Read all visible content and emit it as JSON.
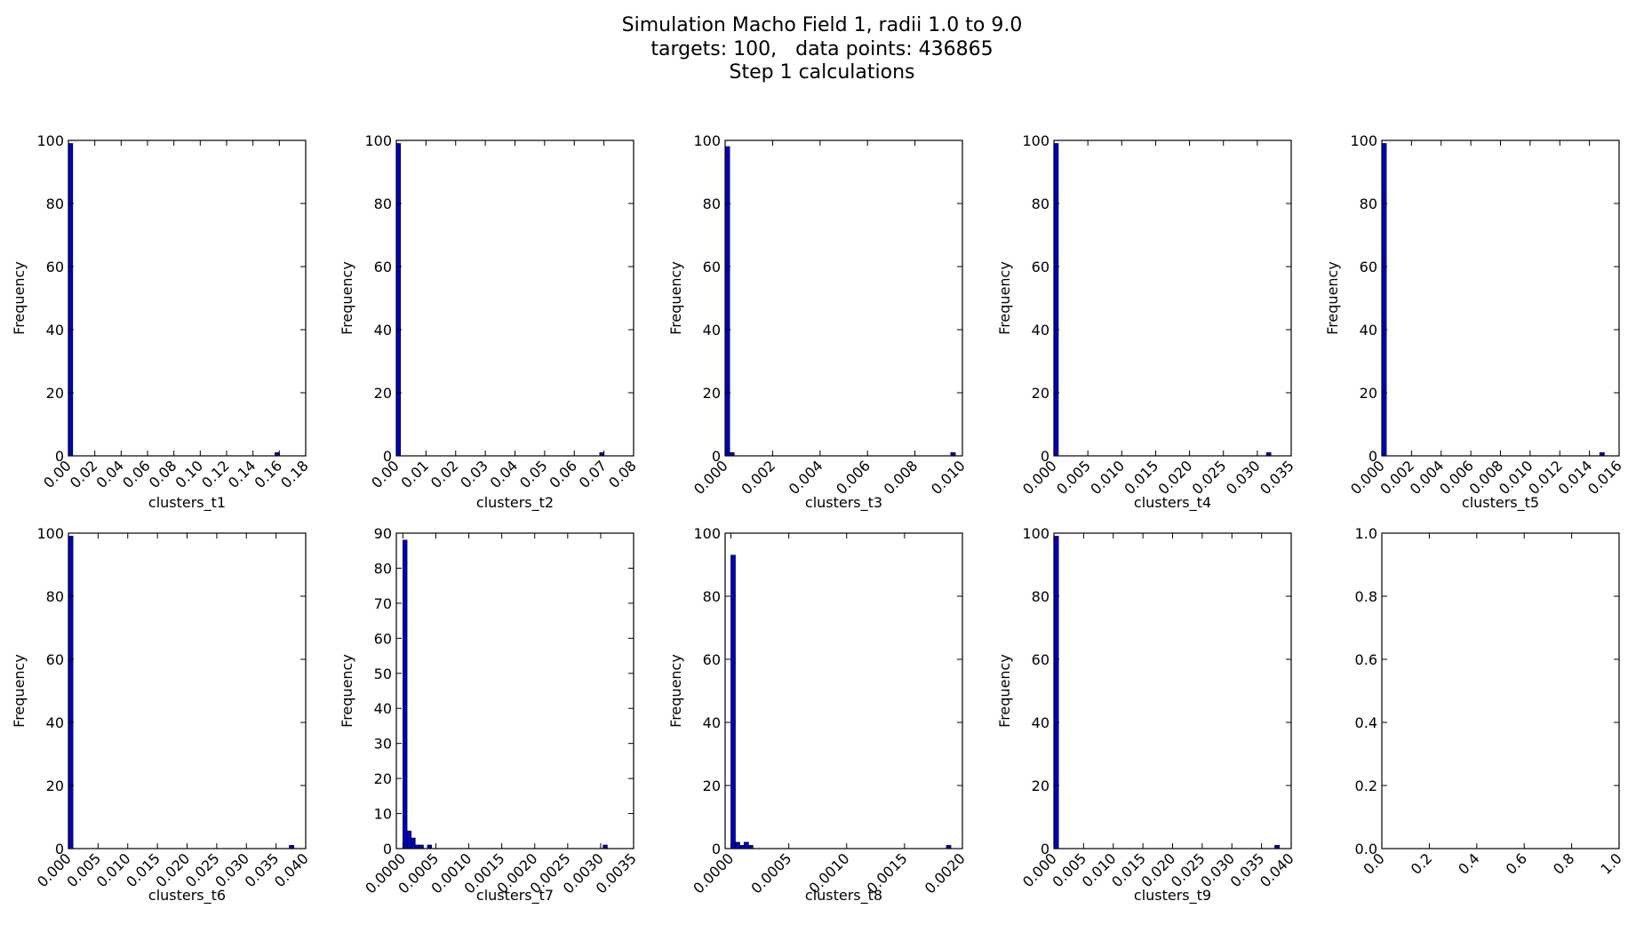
{
  "figure": {
    "title_lines": [
      "Simulation Macho Field 1, radii 1.0 to 9.0",
      "targets: 100,   data points: 436865",
      "Step 1 calculations"
    ]
  },
  "colors": {
    "bar_fill": "#0000bf",
    "bar_edge": "#000033",
    "axes": "#000000",
    "background": "#ffffff"
  },
  "chart_data": [
    {
      "type": "bar",
      "histogram": true,
      "xlabel": "clusters_t1",
      "ylabel": "Frequency",
      "xlim": [
        0,
        0.18
      ],
      "ylim": [
        0,
        100
      ],
      "xticks": [
        "0.00",
        "0.02",
        "0.04",
        "0.06",
        "0.08",
        "0.10",
        "0.12",
        "0.14",
        "0.16",
        "0.18"
      ],
      "yticks": [
        "0",
        "20",
        "40",
        "60",
        "80",
        "100"
      ],
      "bins": [
        {
          "x0": 0.0,
          "x1": 0.0032,
          "count": 99
        },
        {
          "x0": 0.1568,
          "x1": 0.16,
          "count": 1
        }
      ]
    },
    {
      "type": "bar",
      "histogram": true,
      "xlabel": "clusters_t2",
      "ylabel": "Frequency",
      "xlim": [
        0,
        0.08
      ],
      "ylim": [
        0,
        100
      ],
      "xticks": [
        "0.00",
        "0.01",
        "0.02",
        "0.03",
        "0.04",
        "0.05",
        "0.06",
        "0.07",
        "0.08"
      ],
      "yticks": [
        "0",
        "20",
        "40",
        "60",
        "80",
        "100"
      ],
      "bins": [
        {
          "x0": 0.0,
          "x1": 0.0014,
          "count": 99
        },
        {
          "x0": 0.0686,
          "x1": 0.07,
          "count": 1
        }
      ]
    },
    {
      "type": "bar",
      "histogram": true,
      "xlabel": "clusters_t3",
      "ylabel": "Frequency",
      "xlim": [
        0,
        0.01
      ],
      "ylim": [
        0,
        100
      ],
      "xticks": [
        "0.000",
        "0.002",
        "0.004",
        "0.006",
        "0.008",
        "0.010"
      ],
      "yticks": [
        "0",
        "20",
        "40",
        "60",
        "80",
        "100"
      ],
      "bins": [
        {
          "x0": 0.0,
          "x1": 0.00019,
          "count": 98
        },
        {
          "x0": 0.00019,
          "x1": 0.00038,
          "count": 1
        },
        {
          "x0": 0.00951,
          "x1": 0.0097,
          "count": 1
        }
      ]
    },
    {
      "type": "bar",
      "histogram": true,
      "xlabel": "clusters_t4",
      "ylabel": "Frequency",
      "xlim": [
        0,
        0.035
      ],
      "ylim": [
        0,
        100
      ],
      "xticks": [
        "0.000",
        "0.005",
        "0.010",
        "0.015",
        "0.020",
        "0.025",
        "0.030",
        "0.035"
      ],
      "yticks": [
        "0",
        "20",
        "40",
        "60",
        "80",
        "100"
      ],
      "bins": [
        {
          "x0": 0.0,
          "x1": 0.00064,
          "count": 99
        },
        {
          "x0": 0.03136,
          "x1": 0.032,
          "count": 1
        }
      ]
    },
    {
      "type": "bar",
      "histogram": true,
      "xlabel": "clusters_t5",
      "ylabel": "Frequency",
      "xlim": [
        0,
        0.016
      ],
      "ylim": [
        0,
        100
      ],
      "xticks": [
        "0.000",
        "0.002",
        "0.004",
        "0.006",
        "0.008",
        "0.010",
        "0.012",
        "0.014",
        "0.016"
      ],
      "yticks": [
        "0",
        "20",
        "40",
        "60",
        "80",
        "100"
      ],
      "bins": [
        {
          "x0": 0.0,
          "x1": 0.0003,
          "count": 99
        },
        {
          "x0": 0.0147,
          "x1": 0.015,
          "count": 1
        }
      ]
    },
    {
      "type": "bar",
      "histogram": true,
      "xlabel": "clusters_t6",
      "ylabel": "Frequency",
      "xlim": [
        0,
        0.04
      ],
      "ylim": [
        0,
        100
      ],
      "xticks": [
        "0.000",
        "0.005",
        "0.010",
        "0.015",
        "0.020",
        "0.025",
        "0.030",
        "0.035",
        "0.040"
      ],
      "yticks": [
        "0",
        "20",
        "40",
        "60",
        "80",
        "100"
      ],
      "bins": [
        {
          "x0": 0.0,
          "x1": 0.00076,
          "count": 99
        },
        {
          "x0": 0.03724,
          "x1": 0.038,
          "count": 1
        }
      ]
    },
    {
      "type": "bar",
      "histogram": true,
      "xlabel": "clusters_t7",
      "ylabel": "Frequency",
      "xlim": [
        -0.0001,
        0.0035
      ],
      "ylim": [
        0,
        90
      ],
      "xticks": [
        "0.0000",
        "0.0005",
        "0.0010",
        "0.0015",
        "0.0020",
        "0.0025",
        "0.0030",
        "0.0035"
      ],
      "yticks": [
        "0",
        "10",
        "20",
        "30",
        "40",
        "50",
        "60",
        "70",
        "80",
        "90"
      ],
      "bins": [
        {
          "x0": 0.0,
          "x1": 6.2e-05,
          "count": 88
        },
        {
          "x0": 6.2e-05,
          "x1": 0.000124,
          "count": 5
        },
        {
          "x0": 0.000124,
          "x1": 0.000186,
          "count": 3
        },
        {
          "x0": 0.000186,
          "x1": 0.000248,
          "count": 1
        },
        {
          "x0": 0.000248,
          "x1": 0.00031,
          "count": 1
        },
        {
          "x0": 0.000372,
          "x1": 0.000434,
          "count": 1
        },
        {
          "x0": 0.003038,
          "x1": 0.0031,
          "count": 1
        }
      ]
    },
    {
      "type": "bar",
      "histogram": true,
      "xlabel": "clusters_t8",
      "ylabel": "Frequency",
      "xlim": [
        -5e-05,
        0.002
      ],
      "ylim": [
        0,
        100
      ],
      "xticks": [
        "0.0000",
        "0.0005",
        "0.0010",
        "0.0015",
        "0.0020"
      ],
      "yticks": [
        "0",
        "20",
        "40",
        "60",
        "80",
        "100"
      ],
      "bins": [
        {
          "x0": 0.0,
          "x1": 3.8e-05,
          "count": 93
        },
        {
          "x0": 3.8e-05,
          "x1": 7.6e-05,
          "count": 2
        },
        {
          "x0": 7.6e-05,
          "x1": 0.000114,
          "count": 1
        },
        {
          "x0": 0.000114,
          "x1": 0.000152,
          "count": 2
        },
        {
          "x0": 0.000152,
          "x1": 0.00019,
          "count": 1
        },
        {
          "x0": 0.001862,
          "x1": 0.0019,
          "count": 1
        }
      ]
    },
    {
      "type": "bar",
      "histogram": true,
      "xlabel": "clusters_t9",
      "ylabel": "Frequency",
      "xlim": [
        0,
        0.04
      ],
      "ylim": [
        0,
        100
      ],
      "xticks": [
        "0.000",
        "0.005",
        "0.010",
        "0.015",
        "0.020",
        "0.025",
        "0.030",
        "0.035",
        "0.040"
      ],
      "yticks": [
        "0",
        "20",
        "40",
        "60",
        "80",
        "100"
      ],
      "bins": [
        {
          "x0": 0.0,
          "x1": 0.00076,
          "count": 99
        },
        {
          "x0": 0.03724,
          "x1": 0.038,
          "count": 1
        }
      ]
    },
    {
      "type": "bar",
      "histogram": true,
      "xlabel": "",
      "ylabel": "",
      "xlim": [
        0,
        1.0
      ],
      "ylim": [
        0,
        1.0
      ],
      "xticks": [
        "0.0",
        "0.2",
        "0.4",
        "0.6",
        "0.8",
        "1.0"
      ],
      "yticks": [
        "0.0",
        "0.2",
        "0.4",
        "0.6",
        "0.8",
        "1.0"
      ],
      "bins": []
    }
  ]
}
